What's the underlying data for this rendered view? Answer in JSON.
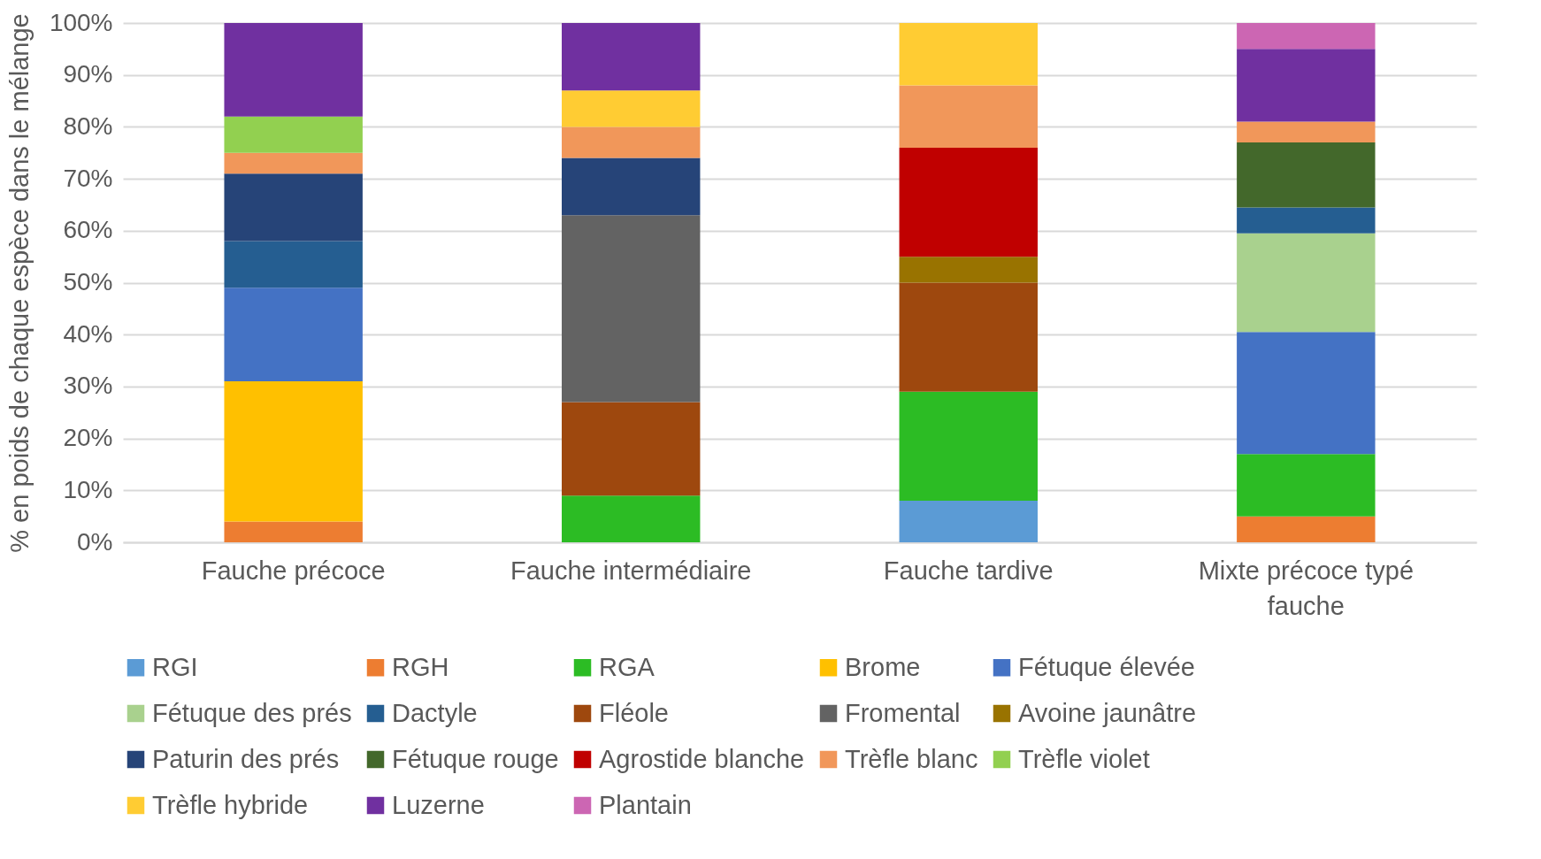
{
  "chart_data": {
    "type": "bar",
    "stacked": true,
    "ylabel": "% en poids de chaque espèce dans le mélange",
    "categories": [
      "Fauche précoce",
      "Fauche intermédiaire",
      "Fauche tardive",
      "Mixte précoce typé fauche"
    ],
    "series": [
      {
        "name": "RGI",
        "color": "#5b9bd5",
        "values": [
          null,
          null,
          8,
          null
        ]
      },
      {
        "name": "RGH",
        "color": "#ed7d31",
        "values": [
          4,
          null,
          null,
          5
        ]
      },
      {
        "name": "RGA",
        "color": "#2cbc24",
        "values": [
          null,
          9,
          21,
          12
        ]
      },
      {
        "name": "Brome",
        "color": "#ffc000",
        "values": [
          27,
          null,
          null,
          null
        ]
      },
      {
        "name": "Fétuque élevée",
        "color": "#4472c4",
        "values": [
          18,
          null,
          null,
          23.5
        ]
      },
      {
        "name": "Fétuque des prés",
        "color": "#a9d18e",
        "values": [
          null,
          null,
          null,
          19
        ]
      },
      {
        "name": "Dactyle",
        "color": "#255e91",
        "values": [
          9,
          null,
          null,
          5
        ]
      },
      {
        "name": "Fléole",
        "color": "#9e480e",
        "values": [
          null,
          18,
          21,
          null
        ]
      },
      {
        "name": "Fromental",
        "color": "#636363",
        "values": [
          null,
          36,
          null,
          null
        ]
      },
      {
        "name": "Avoine jaunâtre",
        "color": "#997300",
        "values": [
          null,
          null,
          5,
          null
        ]
      },
      {
        "name": "Paturin des prés",
        "color": "#264478",
        "values": [
          13,
          11,
          null,
          null
        ]
      },
      {
        "name": "Fétuque rouge",
        "color": "#43682b",
        "values": [
          null,
          null,
          null,
          12.5
        ]
      },
      {
        "name": "Agrostide blanche",
        "color": "#c00000",
        "values": [
          null,
          null,
          21,
          null
        ]
      },
      {
        "name": "Trèfle blanc",
        "color": "#f1975a",
        "values": [
          4,
          6,
          12,
          4
        ]
      },
      {
        "name": "Trèfle violet",
        "color": "#92d050",
        "values": [
          7,
          null,
          null,
          null
        ]
      },
      {
        "name": "Trèfle hybride",
        "color": "#ffcc33",
        "values": [
          null,
          7,
          12,
          null
        ]
      },
      {
        "name": "Luzerne",
        "color": "#7030a0",
        "values": [
          18,
          13,
          null,
          14
        ]
      },
      {
        "name": "Plantain",
        "color": "#cc66b3",
        "values": [
          null,
          null,
          null,
          5
        ]
      }
    ],
    "ylim": [
      0,
      100
    ],
    "yticks": [
      {
        "value": 0,
        "label": "0%"
      },
      {
        "value": 10,
        "label": "10%"
      },
      {
        "value": 20,
        "label": "20%"
      },
      {
        "value": 30,
        "label": "30%"
      },
      {
        "value": 40,
        "label": "40%"
      },
      {
        "value": 50,
        "label": "50%"
      },
      {
        "value": 60,
        "label": "60%"
      },
      {
        "value": 70,
        "label": "70%"
      },
      {
        "value": 80,
        "label": "80%"
      },
      {
        "value": 90,
        "label": "90%"
      },
      {
        "value": 100,
        "label": "100%"
      }
    ],
    "grid": "y",
    "legend": "bottom"
  }
}
